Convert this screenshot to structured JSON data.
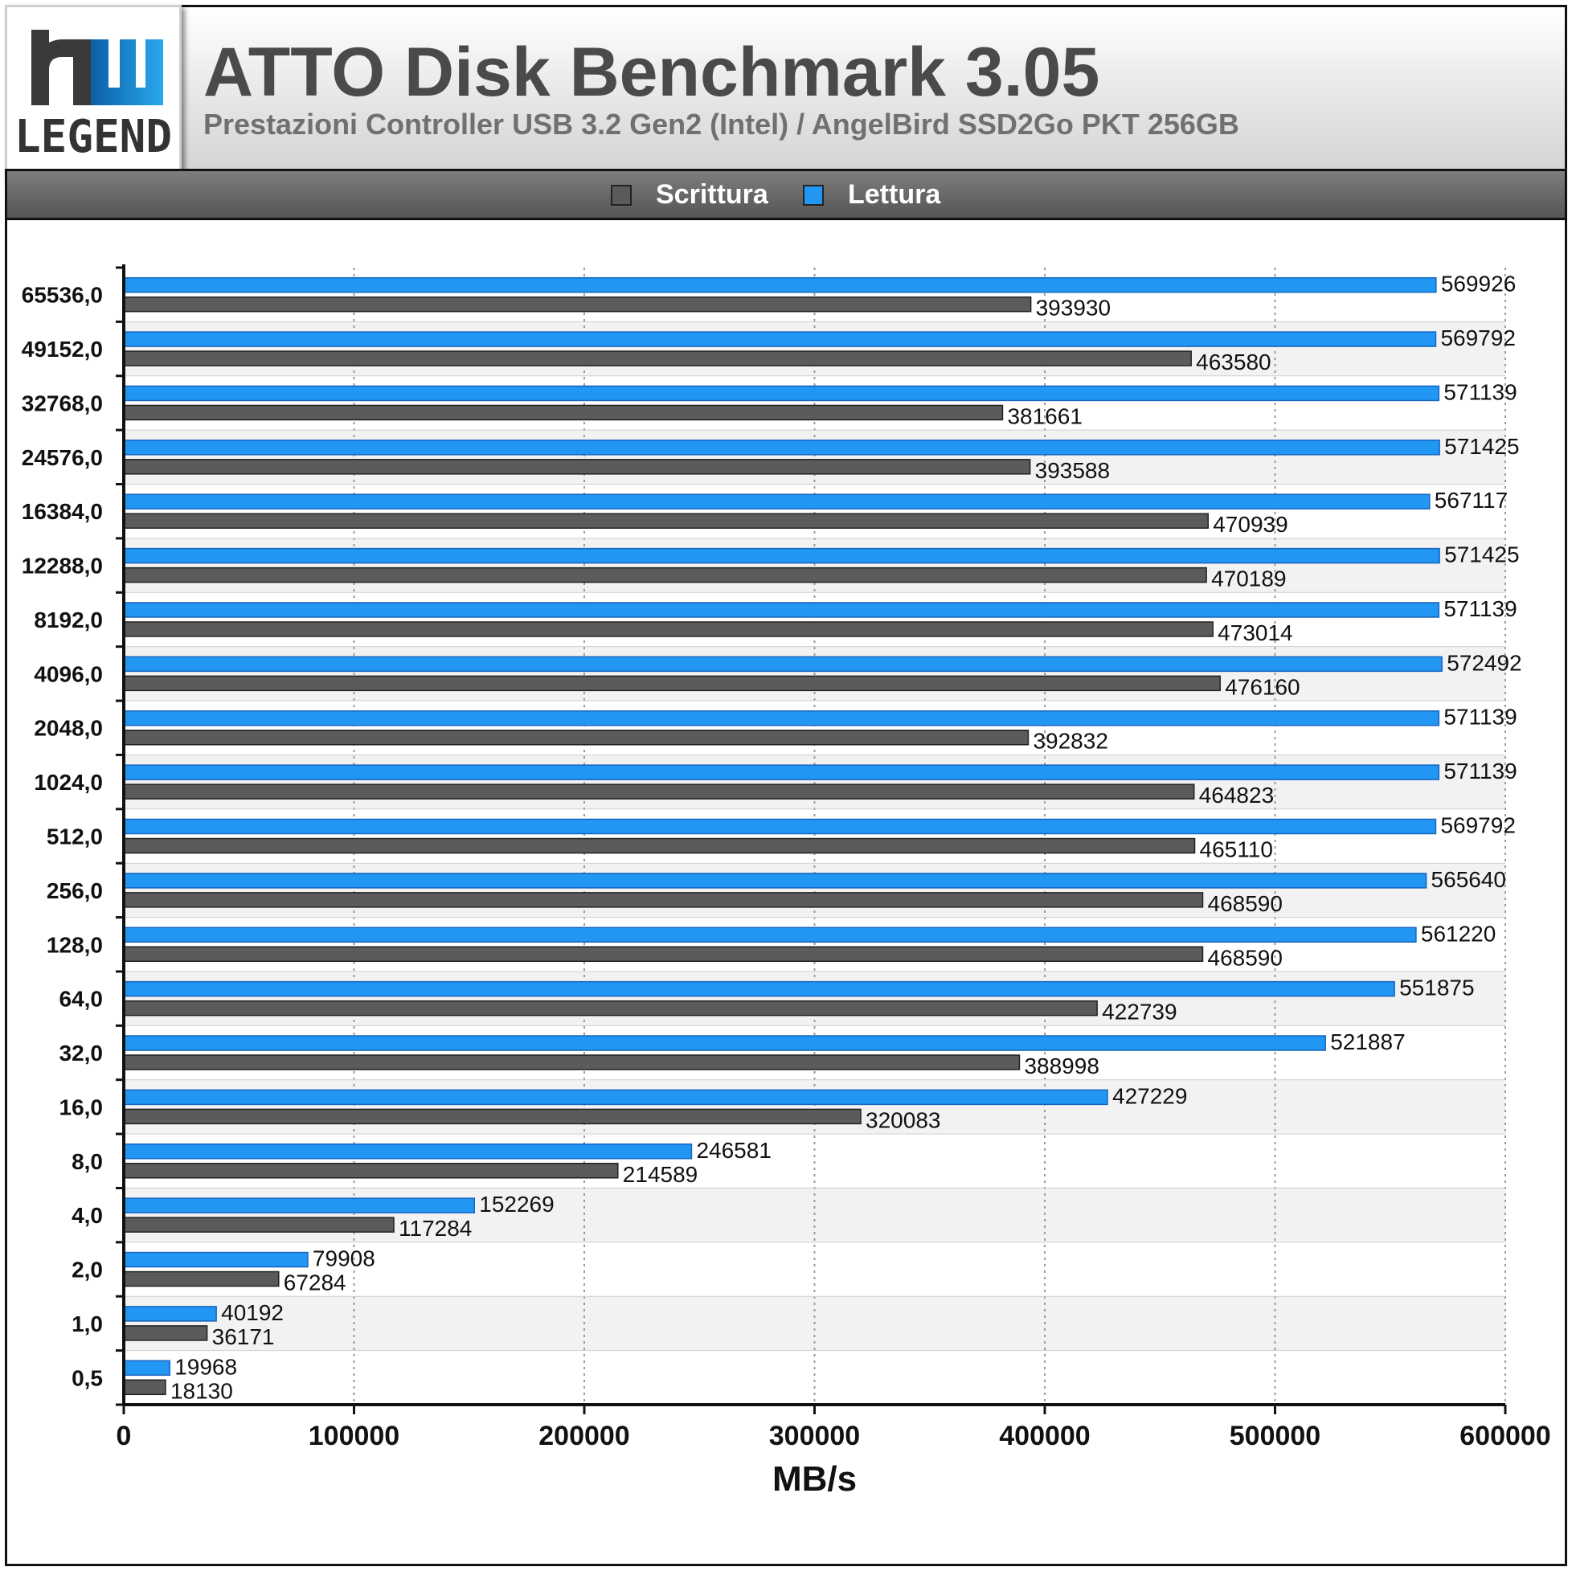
{
  "header": {
    "logo_top": "hw",
    "logo_bottom": "LEGEND",
    "title": "ATTO Disk Benchmark 3.05",
    "subtitle": "Prestazioni Controller USB 3.2 Gen2 (Intel) / AngelBird SSD2Go PKT 256GB"
  },
  "legend": {
    "items": [
      {
        "label": "Scrittura",
        "color": "#5b5b5b"
      },
      {
        "label": "Lettura",
        "color": "#2196f3"
      }
    ],
    "placement": "top"
  },
  "colors": {
    "write": "#5b5b5b",
    "read": "#2196f3",
    "header_gradient_top": "#ffffff",
    "header_gradient_bottom": "#d4d4d4",
    "legend_bar": "#666666",
    "band_alt": "#f2f2f2"
  },
  "chart_data": {
    "type": "bar",
    "orientation": "horizontal",
    "title": "ATTO Disk Benchmark 3.05",
    "subtitle": "Prestazioni Controller USB 3.2 Gen2 (Intel) / AngelBird SSD2Go PKT 256GB",
    "xlabel": "MB/s",
    "ylabel": "",
    "xlim": [
      0,
      600000
    ],
    "xticks": [
      "0",
      "100000",
      "200000",
      "300000",
      "400000",
      "500000",
      "600000"
    ],
    "grid": true,
    "categories": [
      "65536,0",
      "49152,0",
      "32768,0",
      "24576,0",
      "16384,0",
      "12288,0",
      "8192,0",
      "4096,0",
      "2048,0",
      "1024,0",
      "512,0",
      "256,0",
      "128,0",
      "64,0",
      "32,0",
      "16,0",
      "8,0",
      "4,0",
      "2,0",
      "1,0",
      "0,5"
    ],
    "series": [
      {
        "name": "Scrittura",
        "color": "#5b5b5b",
        "values": [
          393930,
          463580,
          381661,
          393588,
          470939,
          470189,
          473014,
          476160,
          392832,
          464823,
          465110,
          468590,
          468590,
          422739,
          388998,
          320083,
          214589,
          117284,
          67284,
          36171,
          18130
        ]
      },
      {
        "name": "Lettura",
        "color": "#2196f3",
        "values": [
          569926,
          569792,
          571139,
          571425,
          567117,
          571425,
          571139,
          572492,
          571139,
          571139,
          569792,
          565640,
          561220,
          551875,
          521887,
          427229,
          246581,
          152269,
          79908,
          40192,
          19968
        ]
      }
    ]
  }
}
